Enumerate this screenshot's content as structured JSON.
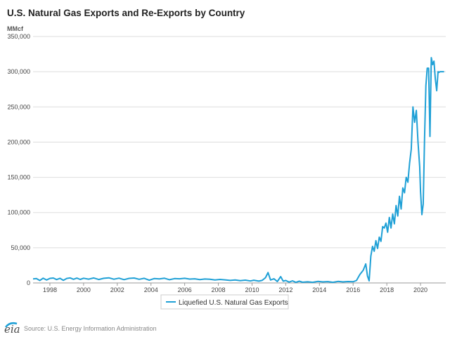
{
  "chart_data": {
    "type": "line",
    "title": "U.S. Natural Gas Exports and Re-Exports by Country",
    "ylabel": "MMcf",
    "xlabel": "",
    "ylim": [
      0,
      350000
    ],
    "xlim": [
      1997,
      2021.5
    ],
    "yticks": [
      0,
      50000,
      100000,
      150000,
      200000,
      250000,
      300000,
      350000
    ],
    "ytick_labels": [
      "0",
      "50,000",
      "100,000",
      "150,000",
      "200,000",
      "250,000",
      "300,000",
      "350,000"
    ],
    "xticks": [
      1998,
      2000,
      2002,
      2004,
      2006,
      2008,
      2010,
      2012,
      2014,
      2016,
      2018,
      2020
    ],
    "xtick_labels": [
      "1998",
      "2000",
      "2002",
      "2004",
      "2006",
      "2008",
      "2010",
      "2012",
      "2014",
      "2016",
      "2018",
      "2020"
    ],
    "grid": true,
    "legend": "bottom-center",
    "series": [
      {
        "name": "Liquefied U.S. Natural Gas Exports",
        "color": "#1fa0d6",
        "x": [
          1997.0,
          1997.2,
          1997.4,
          1997.6,
          1997.8,
          1998.0,
          1998.2,
          1998.4,
          1998.6,
          1998.8,
          1999.0,
          1999.2,
          1999.4,
          1999.6,
          1999.8,
          2000.0,
          2000.3,
          2000.6,
          2000.9,
          2001.2,
          2001.5,
          2001.8,
          2002.1,
          2002.4,
          2002.7,
          2003.0,
          2003.3,
          2003.6,
          2003.9,
          2004.2,
          2004.5,
          2004.8,
          2005.1,
          2005.4,
          2005.7,
          2006.0,
          2006.3,
          2006.6,
          2006.9,
          2007.2,
          2007.5,
          2007.8,
          2008.1,
          2008.4,
          2008.7,
          2009.0,
          2009.3,
          2009.6,
          2009.9,
          2010.1,
          2010.4,
          2010.6,
          2010.8,
          2010.95,
          2011.1,
          2011.3,
          2011.5,
          2011.7,
          2011.85,
          2012.0,
          2012.2,
          2012.4,
          2012.6,
          2012.8,
          2013.0,
          2013.3,
          2013.6,
          2013.9,
          2014.2,
          2014.5,
          2014.8,
          2015.1,
          2015.4,
          2015.7,
          2016.0,
          2016.2,
          2016.4,
          2016.6,
          2016.75,
          2016.85,
          2016.95,
          2017.05,
          2017.15,
          2017.25,
          2017.35,
          2017.45,
          2017.55,
          2017.65,
          2017.75,
          2017.85,
          2017.95,
          2018.05,
          2018.15,
          2018.25,
          2018.35,
          2018.45,
          2018.55,
          2018.65,
          2018.75,
          2018.85,
          2018.95,
          2019.05,
          2019.15,
          2019.25,
          2019.35,
          2019.45,
          2019.55,
          2019.65,
          2019.75,
          2019.85,
          2019.95,
          2020.0,
          2020.08,
          2020.16,
          2020.24,
          2020.32,
          2020.4,
          2020.48,
          2020.56,
          2020.64,
          2020.72,
          2020.8,
          2020.88,
          2020.96,
          2021.04,
          2021.1,
          2021.16,
          2021.22,
          2021.28,
          2021.34,
          2021.4
        ],
        "values": [
          5800,
          6200,
          3500,
          6800,
          4200,
          6500,
          7000,
          4800,
          6600,
          3800,
          6400,
          7200,
          5200,
          6900,
          5000,
          6700,
          5400,
          7100,
          4900,
          6600,
          7300,
          5300,
          6800,
          4700,
          6500,
          7000,
          5200,
          6600,
          3900,
          6300,
          5800,
          6700,
          4600,
          6200,
          5900,
          6600,
          5500,
          5900,
          4800,
          5600,
          5200,
          4200,
          5000,
          4400,
          3600,
          4300,
          3200,
          4000,
          2800,
          3900,
          2600,
          3600,
          7500,
          14800,
          4200,
          6000,
          2000,
          9000,
          2500,
          3500,
          1200,
          3000,
          800,
          2500,
          1000,
          1600,
          900,
          2200,
          1500,
          1900,
          900,
          2200,
          1500,
          2000,
          1700,
          3500,
          12000,
          18000,
          27000,
          10000,
          3000,
          38000,
          52000,
          45000,
          60000,
          49000,
          65000,
          59000,
          80000,
          78000,
          85000,
          72000,
          93000,
          78000,
          98000,
          84000,
          110000,
          95000,
          123000,
          105000,
          135000,
          128000,
          150000,
          143000,
          170000,
          190000,
          250000,
          228000,
          245000,
          200000,
          165000,
          130000,
          97000,
          112000,
          205000,
          280000,
          305000,
          305000,
          208000,
          320000,
          310000,
          315000,
          290000,
          273000,
          300000,
          299000,
          300000,
          300000,
          300000,
          300000,
          300000
        ],
        "values_note": "values estimated from gridlines"
      }
    ]
  },
  "source_text": "Source: U.S. Energy Information Administration",
  "logo_text": "eia"
}
